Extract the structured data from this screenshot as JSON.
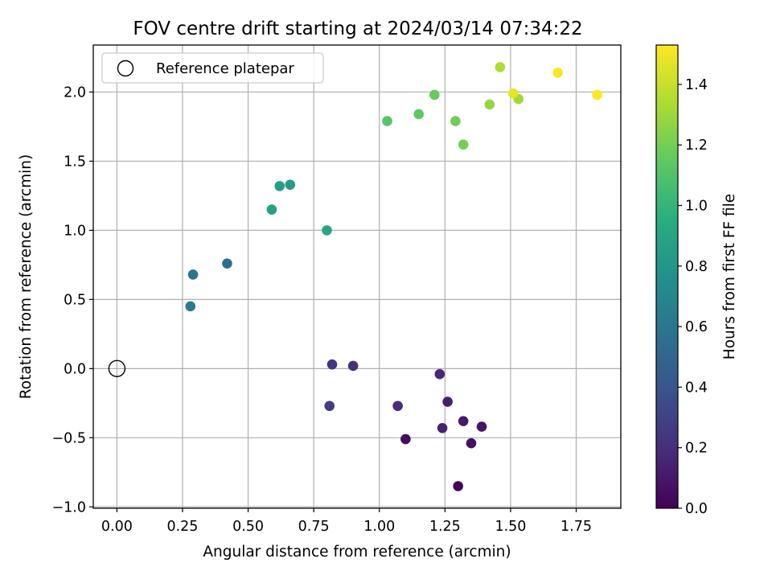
{
  "chart_data": {
    "type": "scatter",
    "title": "FOV centre drift starting at 2024/03/14 07:34:22",
    "xlabel": "Angular distance from reference (arcmin)",
    "ylabel": "Rotation from reference (arcmin)",
    "xlim": [
      -0.09,
      1.92
    ],
    "ylim": [
      -1.01,
      2.34
    ],
    "xticks": [
      0.0,
      0.25,
      0.5,
      0.75,
      1.0,
      1.25,
      1.5,
      1.75
    ],
    "xtick_labels": [
      "0.00",
      "0.25",
      "0.50",
      "0.75",
      "1.00",
      "1.25",
      "1.50",
      "1.75"
    ],
    "yticks": [
      -1.0,
      -0.5,
      0.0,
      0.5,
      1.0,
      1.5,
      2.0
    ],
    "ytick_labels": [
      "−1.0",
      "−0.5",
      "0.0",
      "0.5",
      "1.0",
      "1.5",
      "2.0"
    ],
    "grid": true,
    "legend": {
      "position": "top-left",
      "entries": [
        {
          "label": "Reference platepar",
          "marker": "open-circle"
        }
      ]
    },
    "reference_point": {
      "x": 0.0,
      "y": 0.0
    },
    "colorbar": {
      "label": "Hours from first FF file",
      "colormap": "viridis",
      "range": [
        0.0,
        1.53
      ],
      "ticks": [
        0.0,
        0.2,
        0.4,
        0.6,
        0.8,
        1.0,
        1.2,
        1.4
      ],
      "tick_labels": [
        "0.0",
        "0.2",
        "0.4",
        "0.6",
        "0.8",
        "1.0",
        "1.2",
        "1.4"
      ]
    },
    "points": [
      {
        "x": 1.3,
        "y": -0.85,
        "hours": 0.02
      },
      {
        "x": 1.1,
        "y": -0.51,
        "hours": 0.05
      },
      {
        "x": 1.35,
        "y": -0.54,
        "hours": 0.07
      },
      {
        "x": 1.39,
        "y": -0.42,
        "hours": 0.09
      },
      {
        "x": 1.32,
        "y": -0.38,
        "hours": 0.11
      },
      {
        "x": 1.26,
        "y": -0.24,
        "hours": 0.13
      },
      {
        "x": 1.24,
        "y": -0.43,
        "hours": 0.15
      },
      {
        "x": 1.23,
        "y": -0.04,
        "hours": 0.17
      },
      {
        "x": 1.07,
        "y": -0.27,
        "hours": 0.19
      },
      {
        "x": 0.9,
        "y": 0.02,
        "hours": 0.21
      },
      {
        "x": 0.82,
        "y": 0.03,
        "hours": 0.24
      },
      {
        "x": 0.81,
        "y": -0.27,
        "hours": 0.27
      },
      {
        "x": 0.42,
        "y": 0.76,
        "hours": 0.55
      },
      {
        "x": 0.29,
        "y": 0.68,
        "hours": 0.59
      },
      {
        "x": 0.28,
        "y": 0.45,
        "hours": 0.63
      },
      {
        "x": 0.66,
        "y": 1.33,
        "hours": 0.84
      },
      {
        "x": 0.62,
        "y": 1.32,
        "hours": 0.86
      },
      {
        "x": 0.59,
        "y": 1.15,
        "hours": 0.88
      },
      {
        "x": 0.8,
        "y": 1.0,
        "hours": 0.91
      },
      {
        "x": 1.03,
        "y": 1.79,
        "hours": 1.12
      },
      {
        "x": 1.15,
        "y": 1.84,
        "hours": 1.14
      },
      {
        "x": 1.21,
        "y": 1.98,
        "hours": 1.17
      },
      {
        "x": 1.29,
        "y": 1.79,
        "hours": 1.19
      },
      {
        "x": 1.32,
        "y": 1.62,
        "hours": 1.21
      },
      {
        "x": 1.42,
        "y": 1.91,
        "hours": 1.28
      },
      {
        "x": 1.53,
        "y": 1.95,
        "hours": 1.31
      },
      {
        "x": 1.46,
        "y": 2.18,
        "hours": 1.34
      },
      {
        "x": 1.51,
        "y": 1.99,
        "hours": 1.47
      },
      {
        "x": 1.68,
        "y": 2.14,
        "hours": 1.52
      },
      {
        "x": 1.83,
        "y": 1.98,
        "hours": 1.53
      }
    ]
  }
}
